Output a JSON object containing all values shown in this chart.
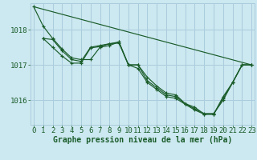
{
  "background_color": "#cce8f0",
  "grid_color": "#aaccdd",
  "line_color": "#1a5c2a",
  "title": "Graphe pression niveau de la mer (hPa)",
  "tick_fontsize": 6.5,
  "title_fontsize": 7.0,
  "xlim": [
    -0.3,
    23.3
  ],
  "ylim": [
    1015.3,
    1018.75
  ],
  "yticks": [
    1016,
    1017,
    1018
  ],
  "xticks": [
    0,
    1,
    2,
    3,
    4,
    5,
    6,
    7,
    8,
    9,
    10,
    11,
    12,
    13,
    14,
    15,
    16,
    17,
    18,
    19,
    20,
    21,
    22,
    23
  ],
  "lines": [
    {
      "x": [
        0,
        1,
        2,
        3,
        4,
        5,
        6,
        7,
        8,
        9,
        10,
        11,
        12,
        13,
        14,
        15,
        16,
        17,
        18,
        19,
        20,
        21,
        22,
        23
      ],
      "y": [
        1018.65,
        1018.1,
        1017.75,
        1017.45,
        1017.2,
        1017.15,
        1017.15,
        1017.5,
        1017.55,
        1017.65,
        1017.0,
        1017.0,
        1016.65,
        1016.4,
        1016.2,
        1016.15,
        1015.9,
        1015.8,
        1015.6,
        1015.6,
        1016.1,
        1016.5,
        1017.0,
        1017.0
      ]
    },
    {
      "x": [
        1,
        2,
        3,
        4,
        5,
        6,
        7,
        8,
        9,
        10,
        11,
        12,
        13,
        14,
        15,
        16,
        17,
        18,
        19,
        20,
        21,
        22,
        23
      ],
      "y": [
        1017.75,
        1017.72,
        1017.4,
        1017.15,
        1017.1,
        1017.5,
        1017.55,
        1017.6,
        1017.65,
        1017.0,
        1017.0,
        1016.55,
        1016.35,
        1016.15,
        1016.1,
        1015.9,
        1015.75,
        1015.62,
        1015.62,
        1016.0,
        1016.5,
        1017.0,
        1017.0
      ]
    },
    {
      "x": [
        0,
        23
      ],
      "y": [
        1018.65,
        1017.0
      ]
    },
    {
      "x": [
        1,
        2,
        3,
        4,
        5,
        6,
        7,
        8,
        9,
        10,
        11,
        12,
        13,
        14,
        15,
        16,
        17,
        18,
        19,
        20,
        21,
        22,
        23
      ],
      "y": [
        1017.75,
        1017.5,
        1017.25,
        1017.05,
        1017.05,
        1017.48,
        1017.52,
        1017.6,
        1017.62,
        1017.0,
        1016.9,
        1016.5,
        1016.3,
        1016.1,
        1016.05,
        1015.88,
        1015.72,
        1015.6,
        1015.6,
        1016.05,
        1016.5,
        1017.0,
        1017.0
      ]
    }
  ]
}
